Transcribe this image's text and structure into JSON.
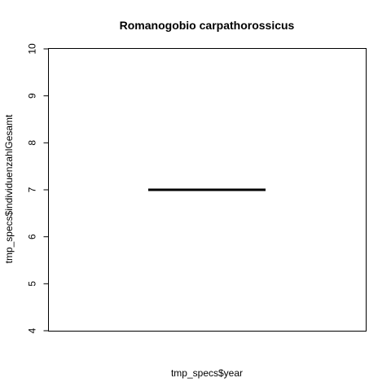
{
  "chart_data": {
    "type": "line",
    "title": "Romanogobio carpathorossicus",
    "xlabel": "tmp_specs$year",
    "ylabel": "tmp_specs$individuenzahlGesamt",
    "ylim": [
      4,
      10
    ],
    "yticks": [
      4,
      5,
      6,
      7,
      8,
      9,
      10
    ],
    "xticks": [],
    "grid": false,
    "legend": "none",
    "series": [
      {
        "values": [
          7,
          7
        ],
        "color": "#000000"
      }
    ]
  }
}
